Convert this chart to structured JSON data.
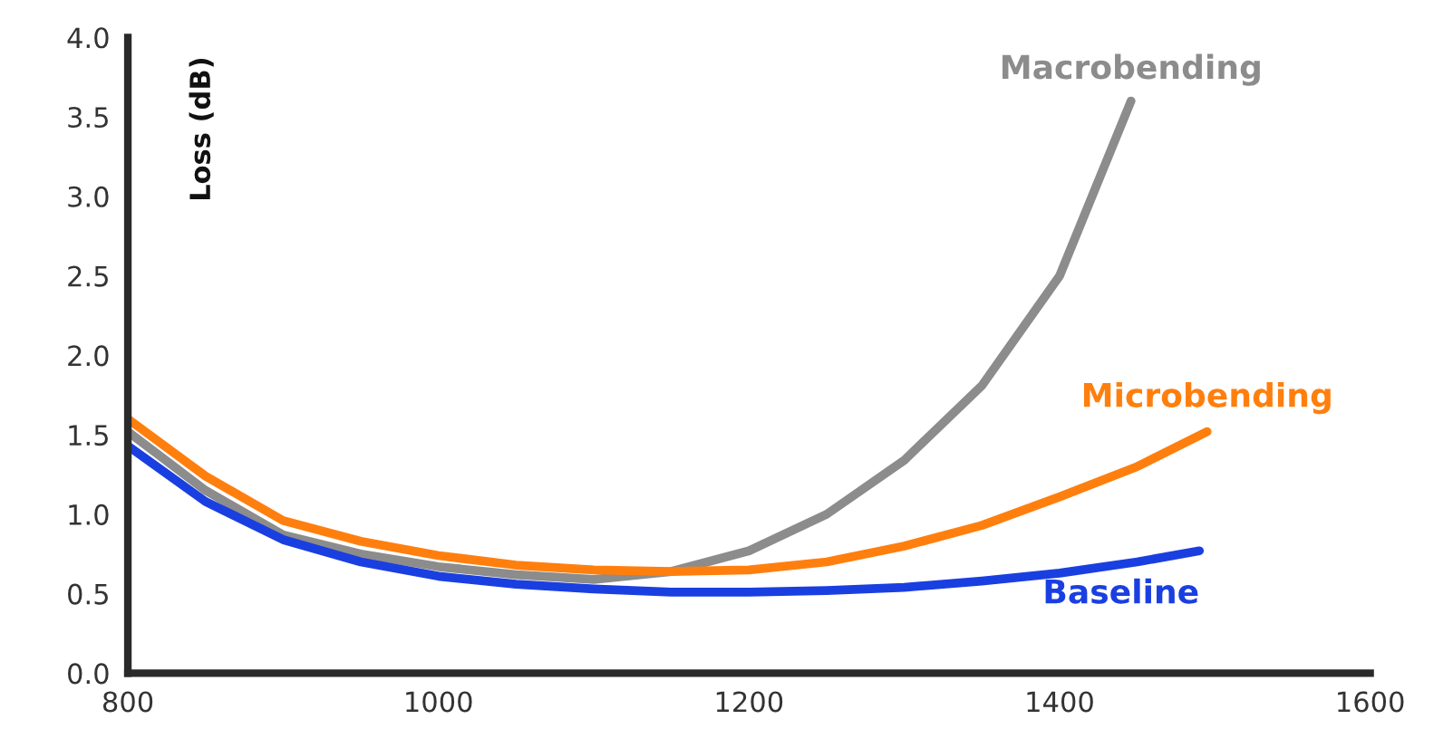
{
  "chart_data": {
    "type": "line",
    "ylabel": "Loss (dB)",
    "xlim": [
      800,
      1600
    ],
    "xticks": [
      800,
      1000,
      1200,
      1400,
      1600
    ],
    "ylim": [
      0,
      4.0
    ],
    "yticks": [
      {
        "value": 0,
        "label": "0.0"
      },
      {
        "value": 0.5,
        "label": "0.5"
      },
      {
        "value": 1.0,
        "label": "1.0"
      },
      {
        "value": 1.5,
        "label": "1.5"
      },
      {
        "value": 2.0,
        "label": "2.0"
      },
      {
        "value": 2.5,
        "label": "2.5"
      },
      {
        "value": 3.0,
        "label": "3.0"
      },
      {
        "value": 3.5,
        "label": "3.5"
      },
      {
        "value": 4.0,
        "label": "4.0"
      }
    ],
    "grid": false,
    "legend": false,
    "marker": "none",
    "line_style": "solid",
    "series": [
      {
        "name": "Macrobending",
        "color": "#8c8c8c",
        "x": [
          800,
          850,
          900,
          950,
          1000,
          1050,
          1100,
          1150,
          1200,
          1250,
          1300,
          1350,
          1400,
          1446
        ],
        "values": [
          1.52,
          1.15,
          0.87,
          0.75,
          0.67,
          0.62,
          0.59,
          0.64,
          0.77,
          1.0,
          1.34,
          1.81,
          2.5,
          3.6
        ]
      },
      {
        "name": "Microbending",
        "color": "#ff7f0e",
        "x": [
          800,
          850,
          900,
          950,
          1000,
          1050,
          1100,
          1150,
          1200,
          1250,
          1300,
          1350,
          1400,
          1450,
          1495
        ],
        "values": [
          1.6,
          1.24,
          0.96,
          0.83,
          0.74,
          0.68,
          0.65,
          0.64,
          0.65,
          0.7,
          0.8,
          0.93,
          1.11,
          1.3,
          1.52
        ]
      },
      {
        "name": "Baseline",
        "color": "#1a3fe0",
        "x": [
          800,
          850,
          900,
          950,
          1000,
          1050,
          1100,
          1150,
          1200,
          1250,
          1300,
          1350,
          1400,
          1450,
          1490
        ],
        "values": [
          1.43,
          1.08,
          0.84,
          0.7,
          0.61,
          0.56,
          0.53,
          0.51,
          0.51,
          0.52,
          0.54,
          0.58,
          0.63,
          0.7,
          0.77
        ]
      }
    ]
  }
}
